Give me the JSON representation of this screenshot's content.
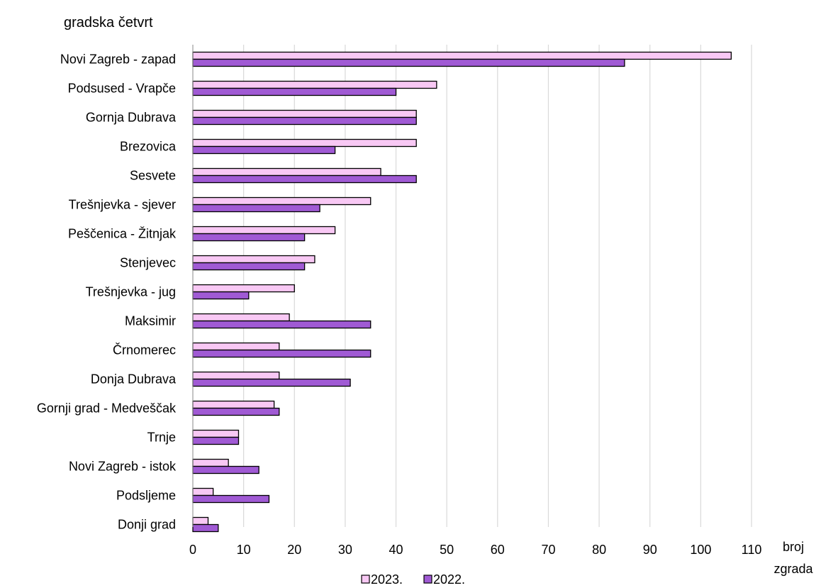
{
  "chart_data": {
    "type": "bar",
    "orientation": "horizontal",
    "y_axis_title": "gradska četvrt",
    "x_axis_title": [
      "broj",
      "zgrada"
    ],
    "categories": [
      "Novi Zagreb - zapad",
      "Podsused - Vrapče",
      "Gornja Dubrava",
      "Brezovica",
      "Sesvete",
      "Trešnjevka - sjever",
      "Peščenica - Žitnjak",
      "Stenjevec",
      "Trešnjevka - jug",
      "Maksimir",
      "Črnomerec",
      "Donja Dubrava",
      "Gornji grad - Medveščak",
      "Trnje",
      "Novi Zagreb - istok",
      "Podsljeme",
      "Donji grad"
    ],
    "series": [
      {
        "name": "2023.",
        "color": "#f8c8f4",
        "values": [
          106,
          48,
          44,
          44,
          37,
          35,
          28,
          24,
          20,
          19,
          17,
          17,
          16,
          9,
          7,
          4,
          3
        ]
      },
      {
        "name": "2022.",
        "color": "#a05ad4",
        "values": [
          85,
          40,
          44,
          28,
          44,
          25,
          22,
          22,
          11,
          35,
          35,
          31,
          17,
          9,
          13,
          15,
          5
        ]
      }
    ],
    "xlim": [
      0,
      110
    ],
    "xticks": [
      0,
      10,
      20,
      30,
      40,
      50,
      60,
      70,
      80,
      90,
      100,
      110
    ],
    "grid": "vertical",
    "legend_position": "bottom"
  }
}
